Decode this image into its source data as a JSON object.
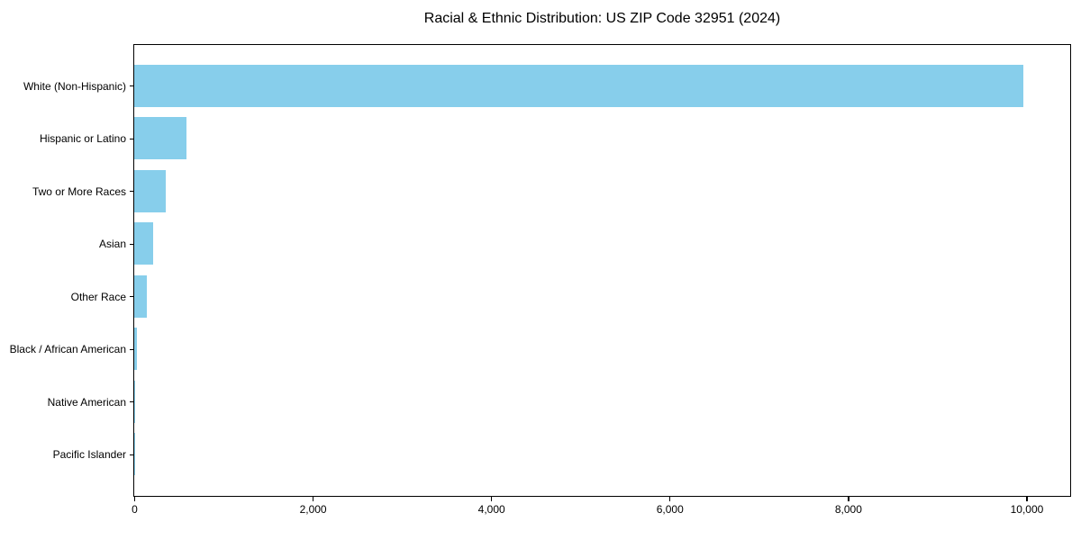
{
  "chart_data": {
    "type": "bar",
    "orientation": "horizontal",
    "title": "Racial & Ethnic Distribution: US ZIP Code 32951 (2024)",
    "categories": [
      "White (Non-Hispanic)",
      "Hispanic or Latino",
      "Two or More Races",
      "Asian",
      "Other Race",
      "Black / African American",
      "Native American",
      "Pacific Islander"
    ],
    "values": [
      9970,
      590,
      355,
      215,
      140,
      35,
      8,
      4
    ],
    "bar_color": "#87CEEB",
    "axis_color": "#000000",
    "text_color": "#000000",
    "background_color": "#ffffff",
    "xlim": [
      0,
      10480
    ],
    "x_ticks": {
      "values": [
        0,
        2000,
        4000,
        6000,
        8000,
        10000
      ],
      "labels": [
        "0",
        "2,000",
        "4,000",
        "6,000",
        "8,000",
        "10,000"
      ]
    },
    "xlabel": "",
    "ylabel": "",
    "grid": false,
    "legend": "none"
  }
}
